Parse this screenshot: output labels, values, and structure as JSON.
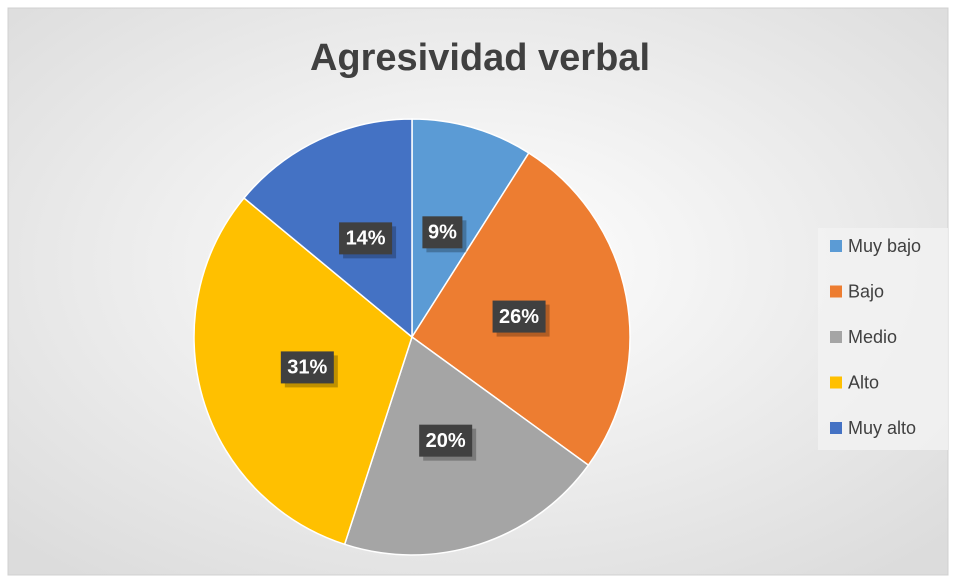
{
  "chart_data": {
    "type": "pie",
    "title": "Agresividad verbal",
    "categories": [
      "Muy bajo",
      "Bajo",
      "Medio",
      "Alto",
      "Muy alto"
    ],
    "values": [
      9,
      26,
      20,
      31,
      14
    ],
    "value_labels": [
      "9%",
      "26%",
      "20%",
      "31%",
      "14%"
    ],
    "colors": [
      "#5b9bd5",
      "#ed7d31",
      "#a5a5a5",
      "#ffc000",
      "#4472c4"
    ],
    "legend": "right"
  }
}
